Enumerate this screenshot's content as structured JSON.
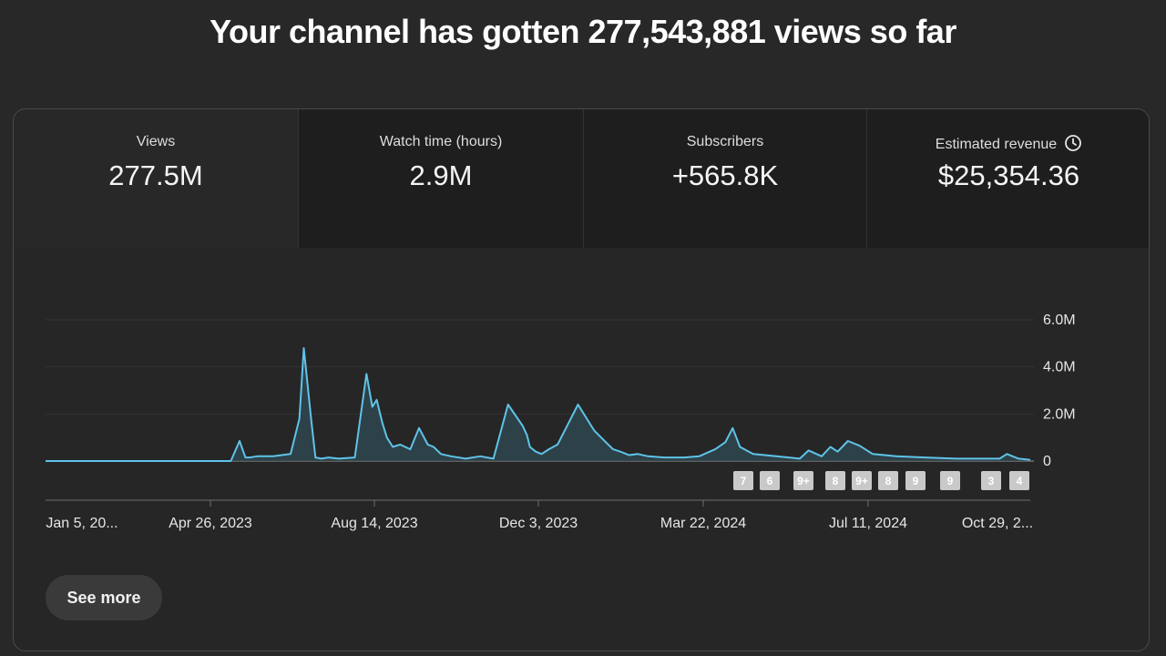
{
  "headline": "Your channel has gotten 277,543,881 views so far",
  "tabs": [
    {
      "label": "Views",
      "value": "277.5M",
      "active": true
    },
    {
      "label": "Watch time (hours)",
      "value": "2.9M",
      "active": false
    },
    {
      "label": "Subscribers",
      "value": "+565.8K",
      "active": false
    },
    {
      "label": "Estimated revenue",
      "value": "$25,354.36",
      "active": false,
      "icon": "clock-icon"
    }
  ],
  "see_more_label": "See more",
  "colors": {
    "line": "#5fc3e8",
    "fill": "#2f4650",
    "background": "#282828",
    "card_border": "#4a4a4a"
  },
  "chart_data": {
    "type": "area",
    "title": "",
    "xlabel": "",
    "ylabel": "",
    "ylim": [
      0,
      6000000
    ],
    "y_ticks": [
      0,
      2000000,
      4000000,
      6000000
    ],
    "y_tick_labels": [
      "0",
      "2.0M",
      "4.0M",
      "6.0M"
    ],
    "x_tick_labels": [
      "Jan 5, 20...",
      "Apr 26, 2023",
      "Aug 14, 2023",
      "Dec 3, 2023",
      "Mar 22, 2024",
      "Jul 11, 2024",
      "Oct 29, 2..."
    ],
    "grid": true,
    "series": [
      {
        "x": [
          "2023-01-05",
          "2023-01-25",
          "2023-02-15",
          "2023-03-10",
          "2023-04-05",
          "2023-04-26",
          "2023-05-12",
          "2023-05-18",
          "2023-05-22",
          "2023-05-25",
          "2023-05-30",
          "2023-06-10",
          "2023-06-22",
          "2023-06-28",
          "2023-07-01",
          "2023-07-06",
          "2023-07-09",
          "2023-07-13",
          "2023-07-18",
          "2023-07-25",
          "2023-08-05",
          "2023-08-13",
          "2023-08-17",
          "2023-08-20",
          "2023-08-24",
          "2023-08-27",
          "2023-08-31",
          "2023-09-05",
          "2023-09-12",
          "2023-09-18",
          "2023-09-24",
          "2023-09-28",
          "2023-10-03",
          "2023-10-10",
          "2023-10-20",
          "2023-10-30",
          "2023-11-08",
          "2023-11-18",
          "2023-11-28",
          "2023-12-01",
          "2023-12-03",
          "2023-12-07",
          "2023-12-11",
          "2023-12-16",
          "2023-12-22",
          "2024-01-05",
          "2024-01-16",
          "2024-01-24",
          "2024-01-29",
          "2024-02-03",
          "2024-02-09",
          "2024-02-15",
          "2024-02-22",
          "2024-03-04",
          "2024-03-18",
          "2024-03-28",
          "2024-04-08",
          "2024-04-15",
          "2024-04-20",
          "2024-04-25",
          "2024-05-04",
          "2024-05-20",
          "2024-06-05",
          "2024-06-11",
          "2024-06-20",
          "2024-06-26",
          "2024-07-01",
          "2024-07-08",
          "2024-07-16",
          "2024-07-25",
          "2024-08-10",
          "2024-08-30",
          "2024-09-20",
          "2024-10-10",
          "2024-10-20",
          "2024-10-25",
          "2024-11-02",
          "2024-11-10"
        ],
        "values": [
          0,
          0,
          0,
          0,
          0,
          0,
          0,
          850000,
          150000,
          150000,
          200000,
          200000,
          300000,
          1800000,
          4800000,
          1800000,
          150000,
          100000,
          150000,
          100000,
          150000,
          3700000,
          2300000,
          2600000,
          1600000,
          1000000,
          600000,
          700000,
          500000,
          1400000,
          700000,
          600000,
          300000,
          200000,
          100000,
          200000,
          100000,
          2400000,
          1500000,
          1100000,
          600000,
          400000,
          300000,
          500000,
          700000,
          2400000,
          1300000,
          800000,
          500000,
          400000,
          250000,
          300000,
          200000,
          150000,
          150000,
          200000,
          500000,
          800000,
          1400000,
          600000,
          300000,
          200000,
          100000,
          450000,
          200000,
          600000,
          400000,
          850000,
          650000,
          300000,
          200000,
          150000,
          100000,
          100000,
          100000,
          300000,
          100000,
          50000
        ]
      }
    ],
    "annotation_markers": [
      "7",
      "6",
      "9+",
      "8",
      "9+",
      "8",
      "9",
      "9",
      "3",
      "4"
    ]
  }
}
